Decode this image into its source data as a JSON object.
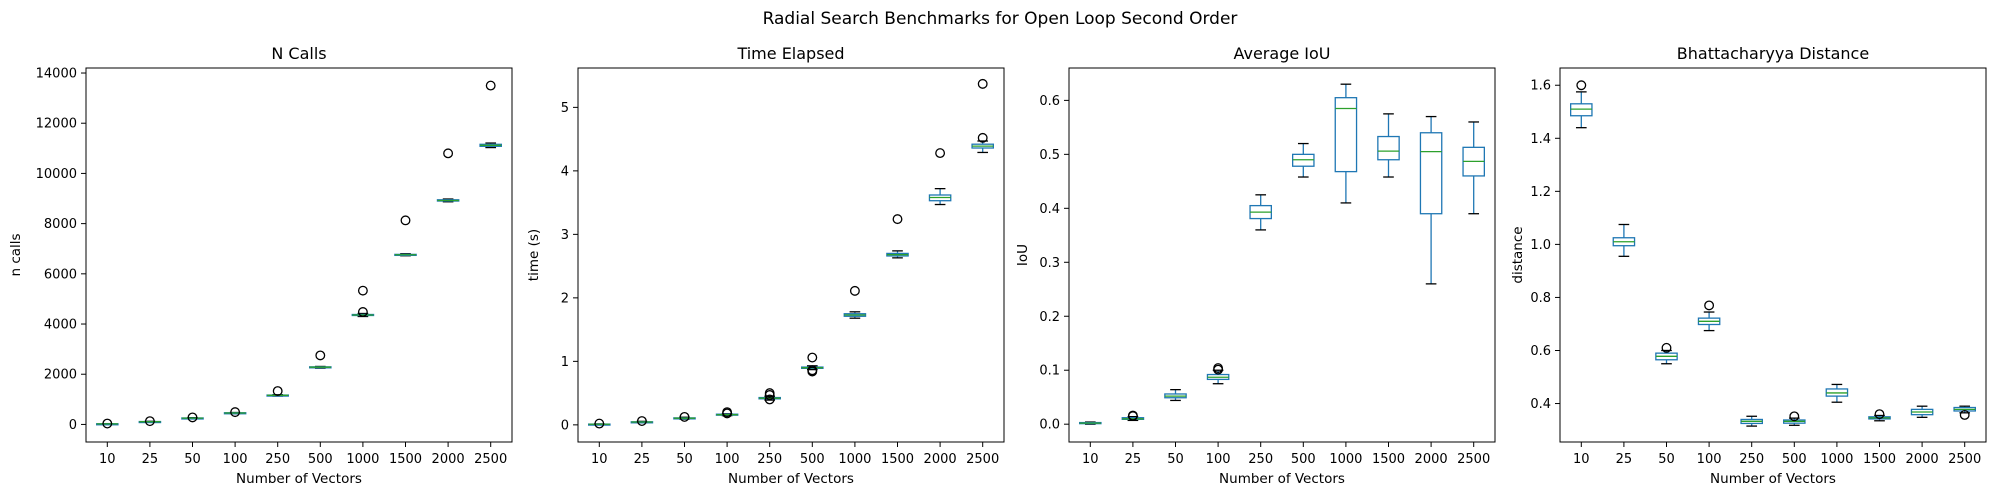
{
  "figure": {
    "suptitle": "Radial Search Benchmarks for Open Loop Second Order"
  },
  "chart_data": [
    {
      "type": "box",
      "title": "N Calls",
      "xlabel": "Number of Vectors",
      "ylabel": "n calls",
      "categories": [
        "10",
        "25",
        "50",
        "100",
        "250",
        "500",
        "1000",
        "1500",
        "2000",
        "2500"
      ],
      "ylim": [
        -700,
        14200
      ],
      "yticks": [
        0,
        2000,
        4000,
        6000,
        8000,
        10000,
        12000,
        14000
      ],
      "boxes": [
        {
          "whislo": 10,
          "q1": 18,
          "med": 22,
          "q3": 26,
          "whishi": 32,
          "fliers": [
            35
          ]
        },
        {
          "whislo": 95,
          "q1": 105,
          "med": 110,
          "q3": 115,
          "whishi": 125,
          "fliers": [
            130
          ]
        },
        {
          "whislo": 230,
          "q1": 245,
          "med": 250,
          "q3": 258,
          "whishi": 270,
          "fliers": [
            280
          ]
        },
        {
          "whislo": 430,
          "q1": 445,
          "med": 455,
          "q3": 465,
          "whishi": 475,
          "fliers": [
            490
          ]
        },
        {
          "whislo": 1130,
          "q1": 1150,
          "med": 1160,
          "q3": 1170,
          "whishi": 1185,
          "fliers": [
            1330
          ]
        },
        {
          "whislo": 2240,
          "q1": 2265,
          "med": 2280,
          "q3": 2295,
          "whishi": 2310,
          "fliers": [
            2750
          ]
        },
        {
          "whislo": 4300,
          "q1": 4340,
          "med": 4360,
          "q3": 4380,
          "whishi": 4420,
          "fliers": [
            4480,
            5330
          ]
        },
        {
          "whislo": 6720,
          "q1": 6745,
          "med": 6760,
          "q3": 6775,
          "whishi": 6800,
          "fliers": [
            8130
          ]
        },
        {
          "whislo": 8870,
          "q1": 8900,
          "med": 8920,
          "q3": 8950,
          "whishi": 8980,
          "fliers": [
            10800
          ]
        },
        {
          "whislo": 11030,
          "q1": 11080,
          "med": 11120,
          "q3": 11160,
          "whishi": 11210,
          "fliers": [
            13500
          ]
        }
      ]
    },
    {
      "type": "box",
      "title": "Time Elapsed",
      "xlabel": "Number of Vectors",
      "ylabel": "time (s)",
      "categories": [
        "10",
        "25",
        "50",
        "100",
        "250",
        "500",
        "1000",
        "1500",
        "2000",
        "2500"
      ],
      "ylim": [
        -0.27,
        5.62
      ],
      "yticks": [
        0,
        1,
        2,
        3,
        4,
        5
      ],
      "boxes": [
        {
          "whislo": 0.005,
          "q1": 0.008,
          "med": 0.01,
          "q3": 0.012,
          "whishi": 0.015,
          "fliers": [
            0.02
          ]
        },
        {
          "whislo": 0.035,
          "q1": 0.042,
          "med": 0.045,
          "q3": 0.048,
          "whishi": 0.055,
          "fliers": [
            0.06
          ]
        },
        {
          "whislo": 0.09,
          "q1": 0.1,
          "med": 0.105,
          "q3": 0.11,
          "whishi": 0.12,
          "fliers": [
            0.125
          ]
        },
        {
          "whislo": 0.145,
          "q1": 0.155,
          "med": 0.16,
          "q3": 0.168,
          "whishi": 0.175,
          "fliers": [
            0.18,
            0.2
          ]
        },
        {
          "whislo": 0.39,
          "q1": 0.41,
          "med": 0.42,
          "q3": 0.43,
          "whishi": 0.45,
          "fliers": [
            0.4,
            0.47,
            0.5
          ]
        },
        {
          "whislo": 0.87,
          "q1": 0.89,
          "med": 0.9,
          "q3": 0.91,
          "whishi": 0.93,
          "fliers": [
            0.84,
            0.86,
            1.06
          ]
        },
        {
          "whislo": 1.68,
          "q1": 1.71,
          "med": 1.73,
          "q3": 1.75,
          "whishi": 1.78,
          "fliers": [
            2.11
          ]
        },
        {
          "whislo": 2.63,
          "q1": 2.66,
          "med": 2.68,
          "q3": 2.7,
          "whishi": 2.74,
          "fliers": [
            3.24
          ]
        },
        {
          "whislo": 3.47,
          "q1": 3.53,
          "med": 3.58,
          "q3": 3.62,
          "whishi": 3.72,
          "fliers": [
            4.28
          ]
        },
        {
          "whislo": 4.29,
          "q1": 4.36,
          "med": 4.39,
          "q3": 4.42,
          "whishi": 4.47,
          "fliers": [
            4.52,
            5.37
          ]
        }
      ]
    },
    {
      "type": "box",
      "title": "Average IoU",
      "xlabel": "Number of Vectors",
      "ylabel": "IoU",
      "categories": [
        "10",
        "25",
        "50",
        "100",
        "250",
        "500",
        "1000",
        "1500",
        "2000",
        "2500"
      ],
      "ylim": [
        -0.033,
        0.66
      ],
      "yticks": [
        0.0,
        0.1,
        0.2,
        0.3,
        0.4,
        0.5,
        0.6
      ],
      "tickFormat": 1,
      "boxes": [
        {
          "whislo": 0.0,
          "q1": 0.001,
          "med": 0.002,
          "q3": 0.003,
          "whishi": 0.004,
          "fliers": []
        },
        {
          "whislo": 0.007,
          "q1": 0.009,
          "med": 0.01,
          "q3": 0.012,
          "whishi": 0.014,
          "fliers": [
            0.015,
            0.016
          ]
        },
        {
          "whislo": 0.044,
          "q1": 0.049,
          "med": 0.052,
          "q3": 0.056,
          "whishi": 0.064,
          "fliers": []
        },
        {
          "whislo": 0.075,
          "q1": 0.083,
          "med": 0.087,
          "q3": 0.092,
          "whishi": 0.1,
          "fliers": [
            0.101,
            0.104
          ]
        },
        {
          "whislo": 0.36,
          "q1": 0.381,
          "med": 0.393,
          "q3": 0.405,
          "whishi": 0.425,
          "fliers": []
        },
        {
          "whislo": 0.458,
          "q1": 0.478,
          "med": 0.49,
          "q3": 0.5,
          "whishi": 0.52,
          "fliers": []
        },
        {
          "whislo": 0.41,
          "q1": 0.468,
          "med": 0.585,
          "q3": 0.605,
          "whishi": 0.63,
          "fliers": []
        },
        {
          "whislo": 0.458,
          "q1": 0.49,
          "med": 0.506,
          "q3": 0.533,
          "whishi": 0.575,
          "fliers": []
        },
        {
          "whislo": 0.26,
          "q1": 0.39,
          "med": 0.505,
          "q3": 0.54,
          "whishi": 0.57,
          "fliers": []
        },
        {
          "whislo": 0.39,
          "q1": 0.46,
          "med": 0.487,
          "q3": 0.513,
          "whishi": 0.56,
          "fliers": []
        }
      ]
    },
    {
      "type": "box",
      "title": "Bhattacharyya Distance",
      "xlabel": "Number of Vectors",
      "ylabel": "distance",
      "categories": [
        "10",
        "25",
        "50",
        "100",
        "250",
        "500",
        "1000",
        "1500",
        "2000",
        "2500"
      ],
      "ylim": [
        0.255,
        1.665
      ],
      "yticks": [
        0.4,
        0.6,
        0.8,
        1.0,
        1.2,
        1.4,
        1.6
      ],
      "tickFormat": 1,
      "boxes": [
        {
          "whislo": 1.44,
          "q1": 1.485,
          "med": 1.51,
          "q3": 1.53,
          "whishi": 1.575,
          "fliers": [
            1.6
          ]
        },
        {
          "whislo": 0.955,
          "q1": 0.995,
          "med": 1.01,
          "q3": 1.025,
          "whishi": 1.075,
          "fliers": []
        },
        {
          "whislo": 0.55,
          "q1": 0.565,
          "med": 0.578,
          "q3": 0.59,
          "whishi": 0.6,
          "fliers": [
            0.61
          ]
        },
        {
          "whislo": 0.675,
          "q1": 0.698,
          "med": 0.71,
          "q3": 0.722,
          "whishi": 0.745,
          "fliers": [
            0.77
          ]
        },
        {
          "whislo": 0.315,
          "q1": 0.325,
          "med": 0.333,
          "q3": 0.34,
          "whishi": 0.352,
          "fliers": []
        },
        {
          "whislo": 0.318,
          "q1": 0.326,
          "med": 0.333,
          "q3": 0.338,
          "whishi": 0.345,
          "fliers": [
            0.352
          ]
        },
        {
          "whislo": 0.405,
          "q1": 0.428,
          "med": 0.44,
          "q3": 0.455,
          "whishi": 0.472,
          "fliers": []
        },
        {
          "whislo": 0.335,
          "q1": 0.342,
          "med": 0.346,
          "q3": 0.35,
          "whishi": 0.355,
          "fliers": [
            0.36
          ]
        },
        {
          "whislo": 0.348,
          "q1": 0.358,
          "med": 0.368,
          "q3": 0.378,
          "whishi": 0.39,
          "fliers": []
        },
        {
          "whislo": 0.365,
          "q1": 0.372,
          "med": 0.378,
          "q3": 0.385,
          "whishi": 0.39,
          "fliers": [
            0.357
          ]
        }
      ]
    }
  ]
}
